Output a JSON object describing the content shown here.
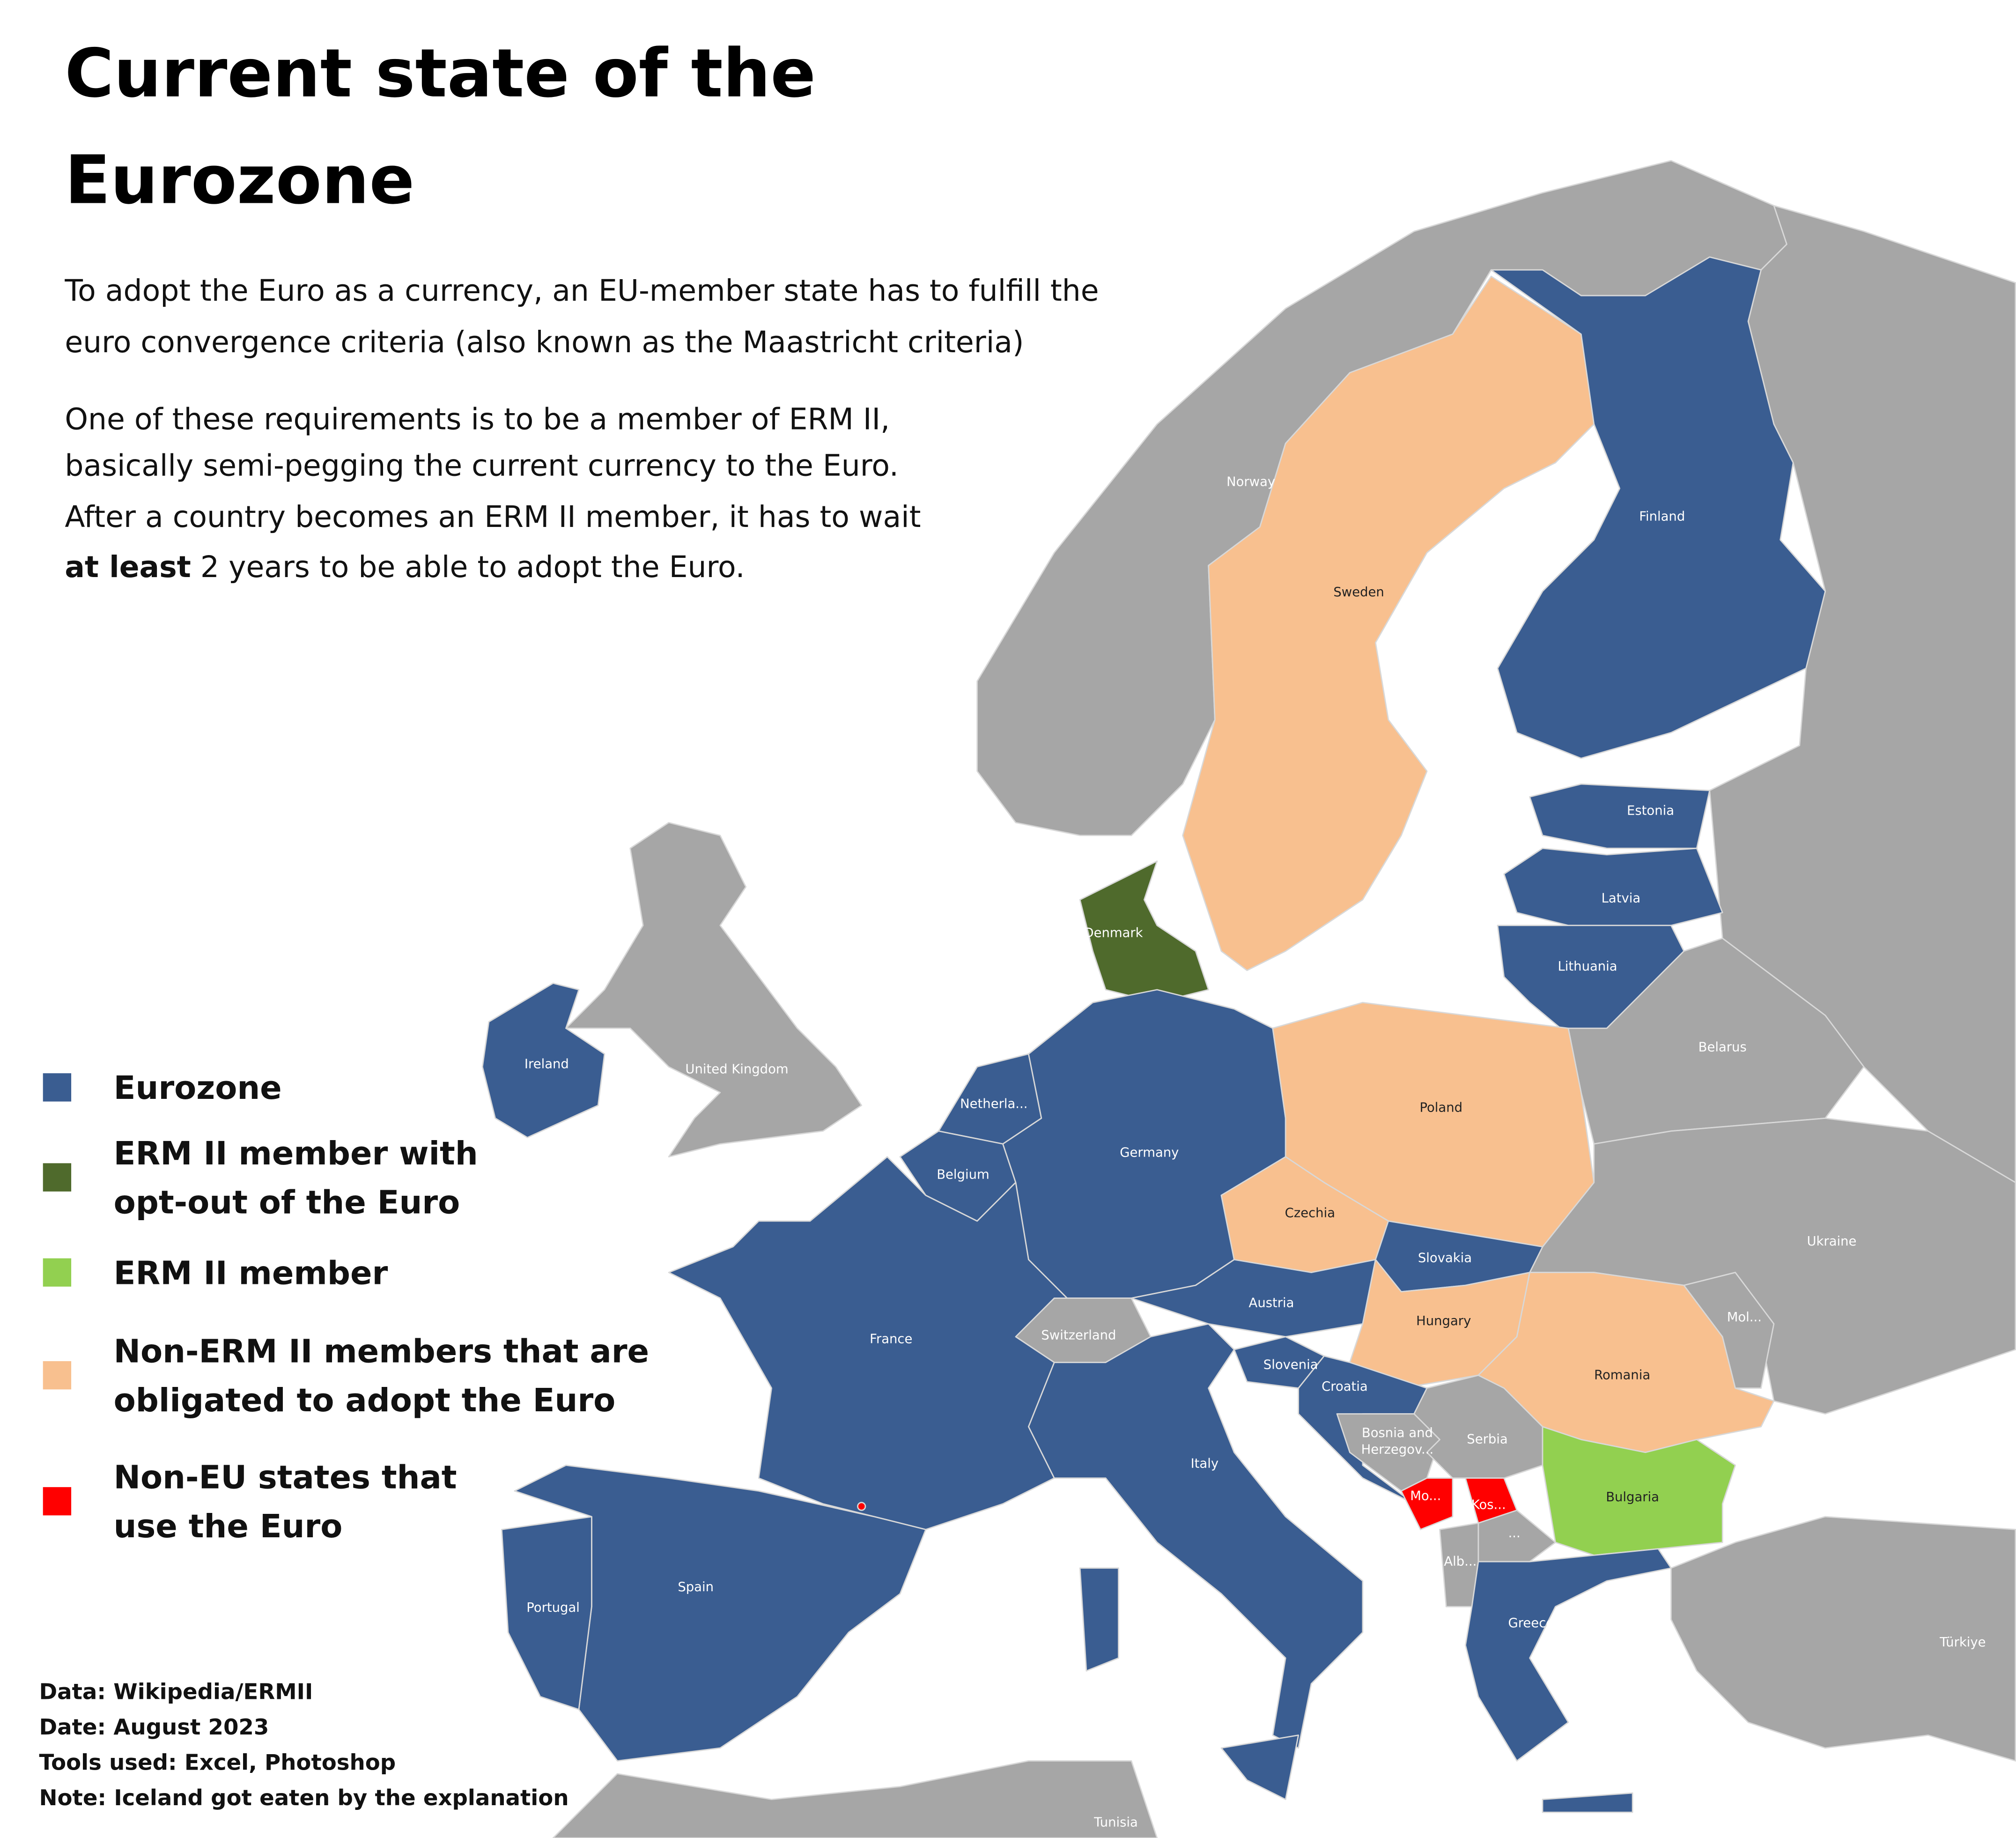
{
  "header": {
    "title": [
      "Current state of the",
      "Eurozone"
    ]
  },
  "intro": {
    "paragraphs": [
      [
        "To adopt the Euro as a currency, an EU-member state has to fulfill the",
        "euro convergence criteria (also known as the Maastricht criteria)"
      ],
      [
        "One of these requirements is to be a member of ERM II,",
        "basically semi-pegging the current currency to the Euro.",
        "After a country becomes an ERM II member, it has to wait",
        {
          "bold": "at least",
          "text": " 2 years to be able to adopt the Euro."
        }
      ]
    ]
  },
  "legend": {
    "items": [
      {
        "label": [
          "Eurozone"
        ],
        "color": "#3a5d91",
        "countries": [
          "Finland",
          "Estonia",
          "Latvia",
          "Lithuania",
          "Ireland",
          "Netherla...",
          "Belgium",
          "Germany",
          "Slovakia",
          "Austria",
          "France",
          "Slovenia",
          "Croatia",
          "Italy",
          "Greece",
          "Spain",
          "Portugal"
        ]
      },
      {
        "label": [
          "ERM II member with",
          "opt-out of the Euro"
        ],
        "color": "#4f6a2c",
        "countries": [
          "Denmark"
        ]
      },
      {
        "label": [
          "ERM II member"
        ],
        "color": "#92d050",
        "countries": [
          "Bulgaria"
        ]
      },
      {
        "label": [
          "Non-ERM II members that are",
          "obligated to adopt the Euro"
        ],
        "color": "#f8c08f",
        "countries": [
          "Sweden",
          "Poland",
          "Czechia",
          "Hungary",
          "Romania"
        ]
      },
      {
        "label": [
          "Non-EU states that",
          "use the Euro"
        ],
        "color": "#ff0000",
        "countries": [
          "Mo...",
          "Kos..."
        ]
      }
    ]
  },
  "other_countries": {
    "color": "#a6a6a6",
    "countries": [
      "Norway",
      "United Kingdom",
      "Belarus",
      "Ukraine",
      "Switzerland",
      "Mol...",
      [
        "Bosnia and",
        "Herzegov..."
      ],
      "Serbia",
      "...",
      "Alb...",
      "Türkiye",
      "Tunisia"
    ]
  },
  "footer": {
    "lines": [
      "Data: Wikipedia/ERMII",
      "Date: August 2023",
      "Tools used: Excel, Photoshop",
      "Note: Iceland got eaten by the explanation"
    ]
  }
}
